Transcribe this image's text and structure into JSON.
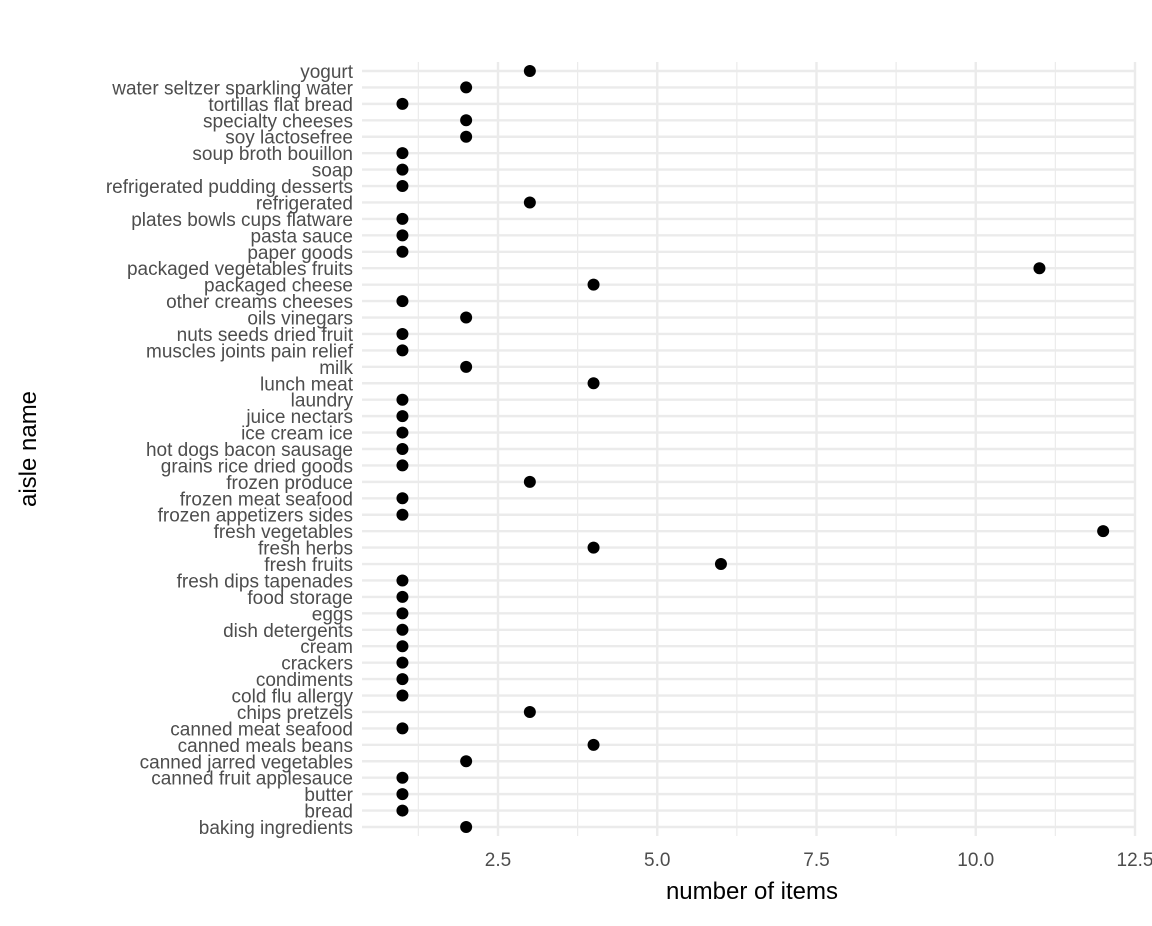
{
  "chart_data": {
    "type": "scatter",
    "title": "",
    "xlabel": "number of items",
    "ylabel": "aisle name",
    "xlim": [
      0.5,
      12.5
    ],
    "x_ticks": [
      "2.5",
      "5.0",
      "7.5",
      "10.0",
      "12.5"
    ],
    "grid": true,
    "point_color": "#000000",
    "grid_color": "#ebebeb",
    "categories": [
      "baking ingredients",
      "bread",
      "butter",
      "canned fruit applesauce",
      "canned jarred vegetables",
      "canned meals beans",
      "canned meat seafood",
      "chips pretzels",
      "cold flu allergy",
      "condiments",
      "crackers",
      "cream",
      "dish detergents",
      "eggs",
      "food storage",
      "fresh dips tapenades",
      "fresh fruits",
      "fresh herbs",
      "fresh vegetables",
      "frozen appetizers sides",
      "frozen meat seafood",
      "frozen produce",
      "grains rice dried goods",
      "hot dogs bacon sausage",
      "ice cream ice",
      "juice nectars",
      "laundry",
      "lunch meat",
      "milk",
      "muscles joints pain relief",
      "nuts seeds dried fruit",
      "oils vinegars",
      "other creams cheeses",
      "packaged cheese",
      "packaged vegetables fruits",
      "paper goods",
      "pasta sauce",
      "plates bowls cups flatware",
      "refrigerated",
      "refrigerated pudding desserts",
      "soap",
      "soup broth bouillon",
      "soy lactosefree",
      "specialty cheeses",
      "tortillas flat bread",
      "water seltzer sparkling water",
      "yogurt"
    ],
    "values": [
      2,
      1,
      1,
      1,
      2,
      4,
      1,
      3,
      1,
      1,
      1,
      1,
      1,
      1,
      1,
      1,
      6,
      4,
      12,
      1,
      1,
      3,
      1,
      1,
      1,
      1,
      1,
      4,
      2,
      1,
      1,
      2,
      1,
      4,
      11,
      1,
      1,
      1,
      3,
      1,
      1,
      1,
      2,
      2,
      1,
      2,
      3
    ]
  }
}
